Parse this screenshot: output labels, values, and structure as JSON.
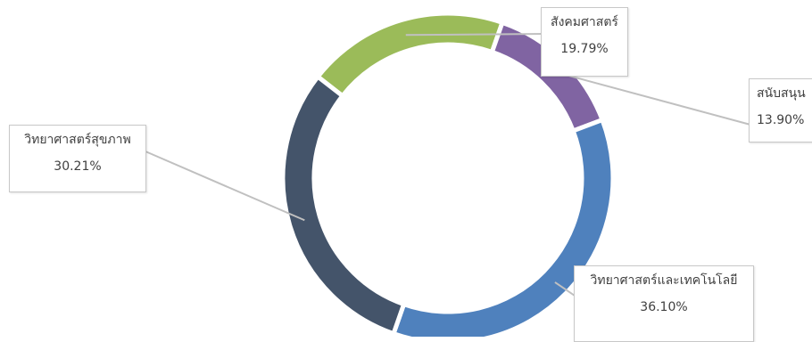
{
  "chart_data": {
    "type": "pie",
    "style": "donut",
    "title": "",
    "categories": [
      "สังคมศาสตร์",
      "สนับสนุน",
      "วิทยาศาสตร์และเทคโนโลยี",
      "วิทยาศาสตร์สุขภาพ"
    ],
    "values": [
      19.79,
      13.9,
      36.1,
      30.21
    ],
    "labels": [
      "19.79%",
      "13.90%",
      "36.10%",
      "30.21%"
    ],
    "colors": [
      "#9bbb59",
      "#8064a2",
      "#4f81bd",
      "#44546a"
    ],
    "legend": "none",
    "data_labels": "callouts"
  }
}
